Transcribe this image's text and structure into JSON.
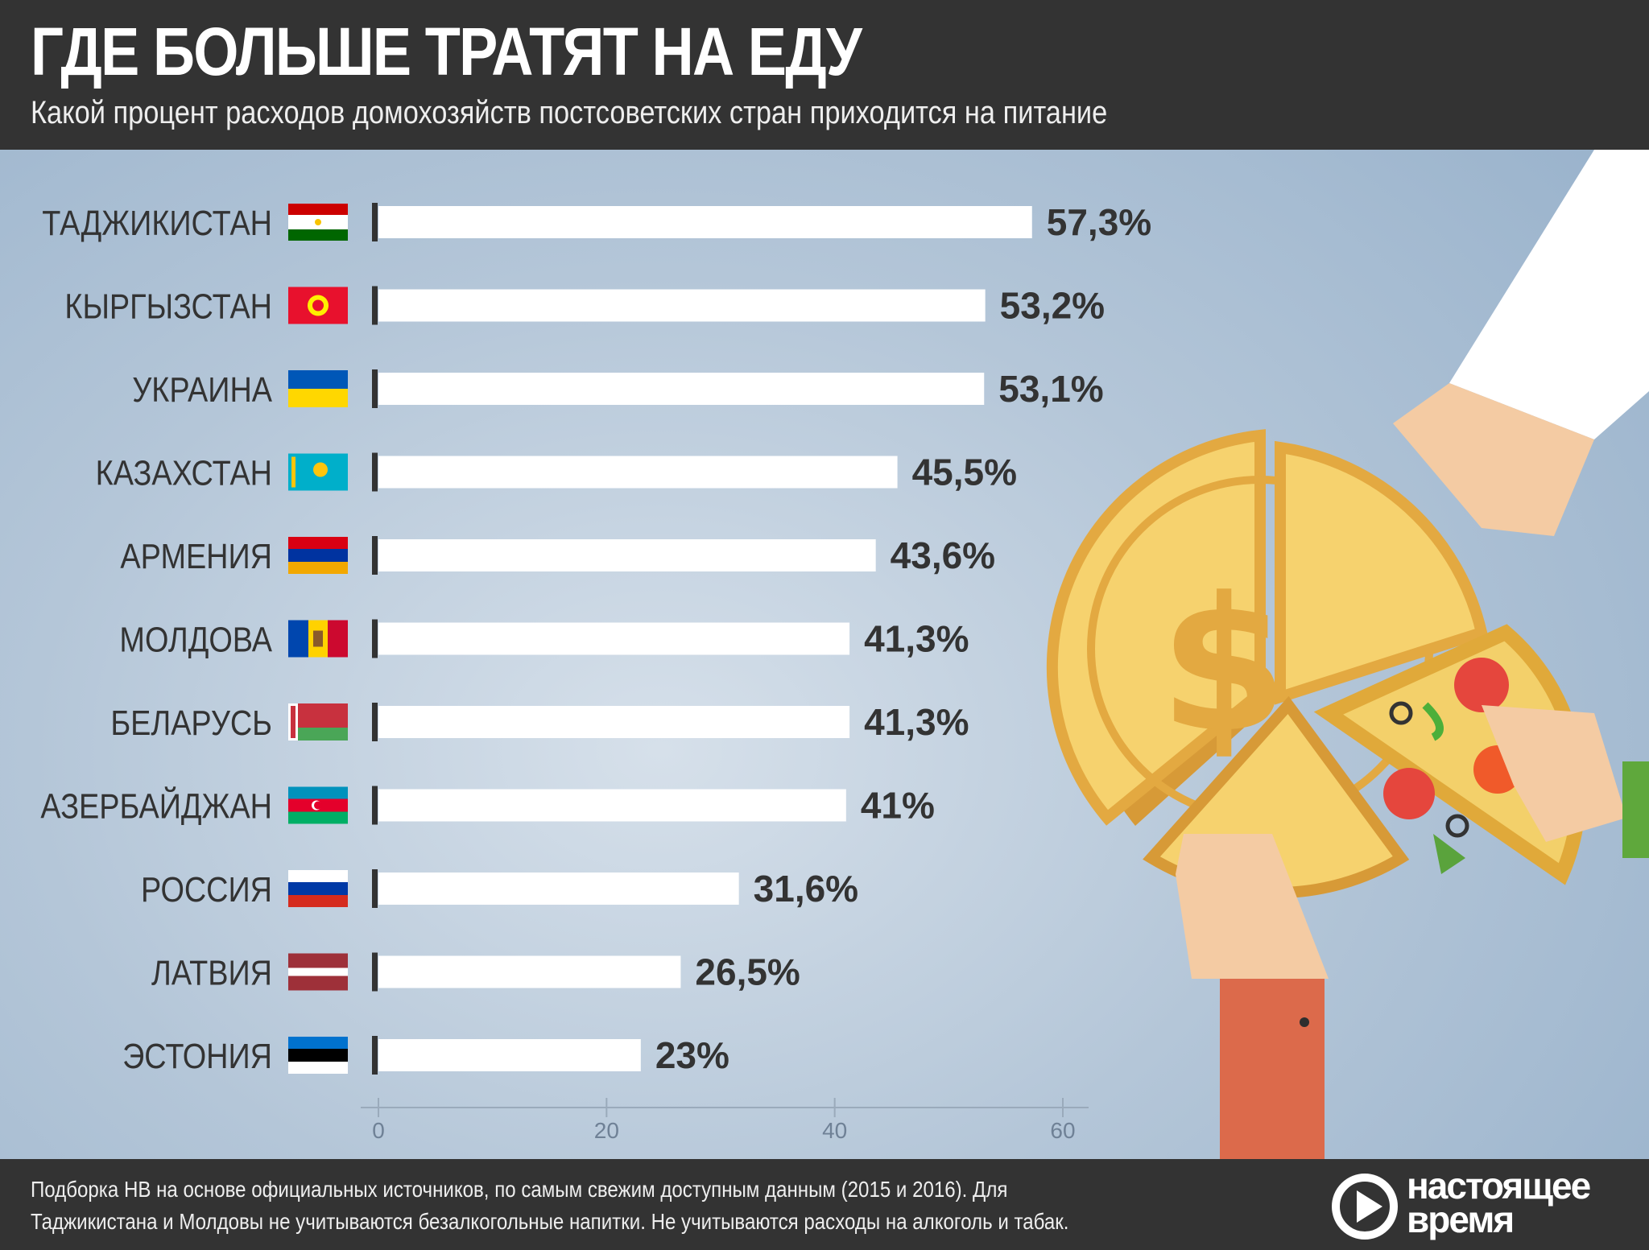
{
  "header": {
    "title": "ГДЕ БОЛЬШЕ ТРАТЯТ НА ЕДУ",
    "subtitle": "Какой процент расходов домохозяйств постсоветских стран приходится на питание"
  },
  "chart_data": {
    "type": "bar",
    "orientation": "horizontal",
    "categories": [
      "ТАДЖИКИСТАН",
      "КЫРГЫЗСТАН",
      "УКРАИНА",
      "КАЗАХСТАН",
      "АРМЕНИЯ",
      "МОЛДОВА",
      "БЕЛАРУСЬ",
      "АЗЕРБАЙДЖАН",
      "РОССИЯ",
      "ЛАТВИЯ",
      "ЭСТОНИЯ"
    ],
    "values": [
      57.3,
      53.2,
      53.1,
      45.5,
      43.6,
      41.3,
      41.3,
      41,
      31.6,
      26.5,
      23
    ],
    "data_labels": [
      "57,3%",
      "53,2%",
      "53,1%",
      "45,5%",
      "43,6%",
      "41,3%",
      "41,3%",
      "41%",
      "31,6%",
      "26,5%",
      "23%"
    ],
    "flags": [
      "tajikistan-flag",
      "kyrgyzstan-flag",
      "ukraine-flag",
      "kazakhstan-flag",
      "armenia-flag",
      "moldova-flag",
      "belarus-flag",
      "azerbaijan-flag",
      "russia-flag",
      "latvia-flag",
      "estonia-flag"
    ],
    "xlim": [
      0,
      60
    ],
    "xticks": [
      "0",
      "20",
      "40",
      "60"
    ],
    "grid": false,
    "bar_color": "#ffffff",
    "label_color": "#333333"
  },
  "illustration": {
    "description_icon": "pizza-coin-hands-illustration"
  },
  "footer": {
    "source": "Подборка НВ на основе официальных источников, по самым свежим доступным данным (2015 и 2016). Для Таджикистана и Молдовы не учитываются безалкогольные напитки. Не учитываются расходы на алкоголь и табак.",
    "logo_line1": "настоящее",
    "logo_line2": "время"
  },
  "colors": {
    "header_bg": "#333333",
    "coin_gold": "#f6d26e",
    "coin_dark": "#e0a93a"
  }
}
